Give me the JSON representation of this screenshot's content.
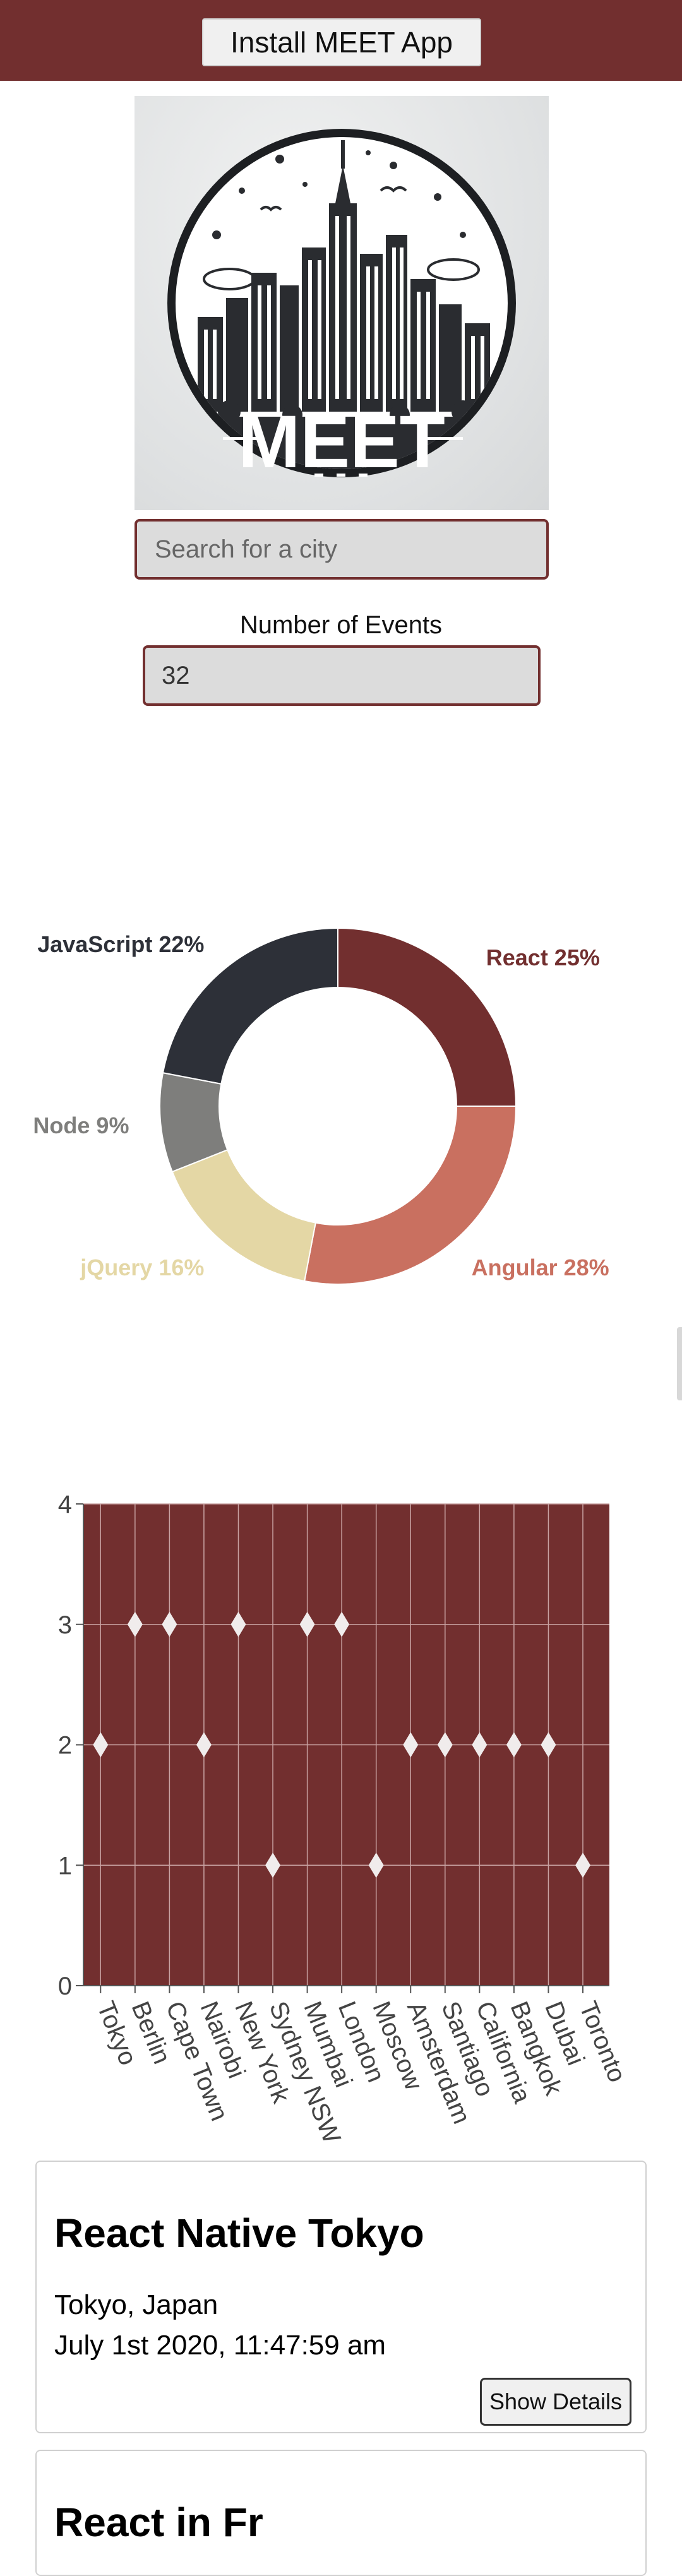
{
  "header": {
    "install_label": "Install MEET App"
  },
  "logo": {
    "text": "MEET"
  },
  "search": {
    "placeholder": "Search for a city",
    "value": ""
  },
  "events": {
    "label": "Number of Events",
    "value": "32"
  },
  "colors": {
    "brand": "#722f2f",
    "input_bg": "#dcdcdc",
    "react": "#722f2f",
    "angular": "#c97060",
    "jquery": "#e4d7a5",
    "node": "#7e7e7c",
    "javascript": "#2d3038"
  },
  "chart_data": [
    {
      "type": "pie",
      "variant": "donut",
      "slices": [
        {
          "label": "React",
          "value": 25,
          "color": "#722f2f"
        },
        {
          "label": "Angular",
          "value": 28,
          "color": "#c97060"
        },
        {
          "label": "jQuery",
          "value": 16,
          "color": "#e4d7a5"
        },
        {
          "label": "Node",
          "value": 9,
          "color": "#7e7e7c"
        },
        {
          "label": "JavaScript",
          "value": 22,
          "color": "#2d3038"
        }
      ]
    },
    {
      "type": "scatter",
      "categories": [
        "Tokyo",
        "Berlin",
        "Cape Town",
        "Nairobi",
        "New York",
        "Sydney NSW",
        "Mumbai",
        "London",
        "Moscow",
        "Amsterdam",
        "Santiago",
        "California",
        "Bangkok",
        "Dubai",
        "Toronto"
      ],
      "values": [
        2,
        3,
        3,
        2,
        3,
        1,
        3,
        3,
        1,
        2,
        2,
        2,
        2,
        2,
        1
      ],
      "ylim": [
        0,
        4
      ],
      "yticks": [
        0,
        1,
        2,
        3,
        4
      ],
      "grid": true,
      "marker": "diamond"
    }
  ],
  "cards": [
    {
      "title": "React Native Tokyo",
      "location": "Tokyo, Japan",
      "date": "July 1st 2020, 11:47:59 am",
      "button": "Show Details"
    },
    {
      "title": "React in Fr"
    }
  ]
}
